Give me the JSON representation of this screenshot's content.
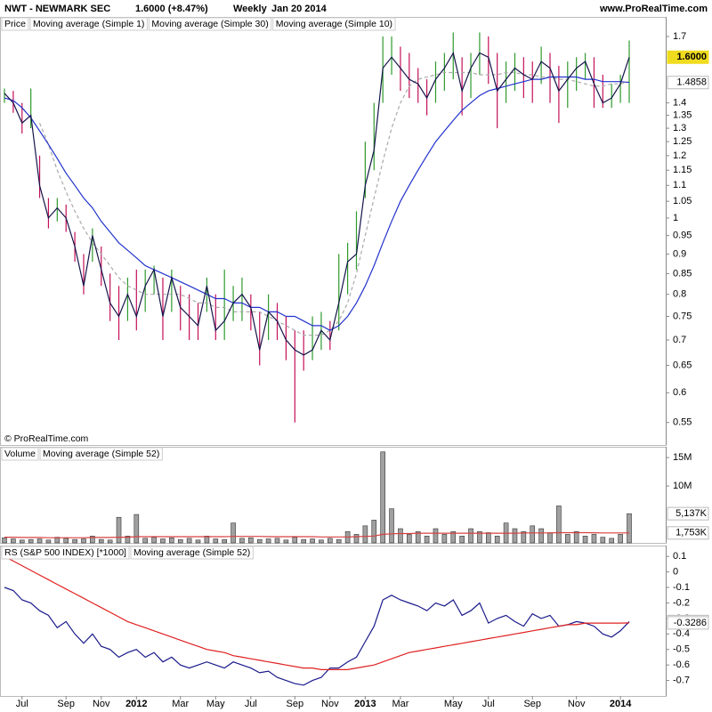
{
  "header": {
    "symbol": "NWT - NEWMARK SEC",
    "quote": "1.6000 (+8.47%)",
    "period": "Weekly",
    "date": "Jan 20 2014",
    "site": "www.ProRealTime.com"
  },
  "copyright": "© ProRealTime.com",
  "chart_data": [
    {
      "type": "price",
      "legend_label": "Price",
      "log": true,
      "ylim": [
        0.515,
        1.8
      ],
      "yticks": [
        1.7,
        1.4,
        1.35,
        1.3,
        1.25,
        1.2,
        1.15,
        1.1,
        1.05,
        1,
        0.95,
        0.9,
        0.85,
        0.8,
        0.75,
        0.7,
        0.65,
        0.6,
        0.55
      ],
      "up_color": "#2e9a2e",
      "down_color": "#c4105a",
      "high": [
        1.46,
        1.45,
        1.4,
        1.46,
        1.2,
        1.06,
        1.06,
        1.04,
        0.96,
        0.9,
        0.97,
        0.92,
        0.85,
        0.82,
        0.84,
        0.86,
        0.86,
        0.87,
        0.84,
        0.86,
        0.82,
        0.8,
        0.78,
        0.84,
        0.8,
        0.86,
        0.82,
        0.84,
        0.8,
        0.76,
        0.8,
        0.78,
        0.75,
        0.72,
        0.72,
        0.75,
        0.76,
        0.74,
        0.9,
        0.93,
        1.02,
        1.25,
        1.4,
        1.7,
        1.7,
        1.65,
        1.62,
        1.55,
        1.5,
        1.58,
        1.62,
        1.72,
        1.6,
        1.62,
        1.72,
        1.7,
        1.62,
        1.58,
        1.62,
        1.6,
        1.58,
        1.65,
        1.62,
        1.56,
        1.58,
        1.6,
        1.62,
        1.6,
        1.52,
        1.48,
        1.52,
        1.68
      ],
      "low": [
        1.4,
        1.36,
        1.28,
        1.3,
        1.06,
        0.97,
        0.99,
        0.96,
        0.88,
        0.8,
        0.88,
        0.82,
        0.74,
        0.7,
        0.74,
        0.72,
        0.76,
        0.8,
        0.7,
        0.76,
        0.72,
        0.7,
        0.7,
        0.76,
        0.7,
        0.7,
        0.74,
        0.74,
        0.72,
        0.65,
        0.7,
        0.7,
        0.66,
        0.55,
        0.64,
        0.66,
        0.68,
        0.68,
        0.72,
        0.8,
        0.86,
        1.06,
        1.15,
        1.4,
        1.52,
        1.45,
        1.42,
        1.4,
        1.35,
        1.4,
        1.45,
        1.5,
        1.35,
        1.42,
        1.52,
        1.48,
        1.3,
        1.4,
        1.45,
        1.42,
        1.4,
        1.48,
        1.4,
        1.32,
        1.38,
        1.45,
        1.5,
        1.38,
        1.38,
        1.38,
        1.4,
        1.4
      ],
      "series": [
        {
          "name": "Moving average (Simple 1)",
          "color": "#14144a",
          "last_label": "1.6000",
          "label_fill": "#f0dc1e",
          "values": [
            1.44,
            1.4,
            1.32,
            1.35,
            1.1,
            1.0,
            1.03,
            1.0,
            0.92,
            0.82,
            0.95,
            0.86,
            0.78,
            0.75,
            0.8,
            0.75,
            0.82,
            0.86,
            0.75,
            0.84,
            0.77,
            0.75,
            0.73,
            0.82,
            0.72,
            0.74,
            0.78,
            0.8,
            0.77,
            0.68,
            0.76,
            0.74,
            0.7,
            0.68,
            0.67,
            0.68,
            0.72,
            0.7,
            0.78,
            0.88,
            0.9,
            1.1,
            1.22,
            1.55,
            1.6,
            1.55,
            1.5,
            1.48,
            1.42,
            1.5,
            1.55,
            1.62,
            1.45,
            1.55,
            1.62,
            1.6,
            1.45,
            1.5,
            1.55,
            1.52,
            1.5,
            1.58,
            1.55,
            1.45,
            1.5,
            1.55,
            1.58,
            1.48,
            1.4,
            1.42,
            1.48,
            1.6
          ]
        },
        {
          "name": "Moving average (Simple 30)",
          "color": "#2233cc",
          "last_label": "1.4858",
          "values": [
            1.42,
            1.41,
            1.38,
            1.34,
            1.29,
            1.24,
            1.19,
            1.14,
            1.1,
            1.06,
            1.03,
            0.99,
            0.96,
            0.93,
            0.91,
            0.89,
            0.87,
            0.86,
            0.85,
            0.84,
            0.83,
            0.82,
            0.81,
            0.8,
            0.79,
            0.79,
            0.78,
            0.78,
            0.77,
            0.77,
            0.76,
            0.76,
            0.75,
            0.75,
            0.74,
            0.73,
            0.73,
            0.72,
            0.73,
            0.75,
            0.78,
            0.82,
            0.87,
            0.93,
            0.99,
            1.05,
            1.1,
            1.15,
            1.2,
            1.25,
            1.29,
            1.33,
            1.37,
            1.4,
            1.43,
            1.45,
            1.46,
            1.47,
            1.48,
            1.49,
            1.5,
            1.5,
            1.51,
            1.51,
            1.51,
            1.51,
            1.5,
            1.5,
            1.49,
            1.49,
            1.49,
            1.4858
          ]
        },
        {
          "name": "Moving average (Simple 10)",
          "color": "#aaaaaa",
          "dash": true,
          "values": [
            null,
            null,
            null,
            null,
            1.32,
            1.24,
            1.15,
            1.08,
            1.02,
            0.97,
            0.93,
            0.9,
            0.87,
            0.84,
            0.82,
            0.81,
            0.8,
            0.8,
            0.8,
            0.8,
            0.8,
            0.79,
            0.78,
            0.78,
            0.77,
            0.77,
            0.76,
            0.76,
            0.76,
            0.76,
            0.75,
            0.74,
            0.73,
            0.72,
            0.71,
            0.71,
            0.71,
            0.72,
            0.74,
            0.78,
            0.85,
            0.95,
            1.06,
            1.18,
            1.3,
            1.4,
            1.47,
            1.5,
            1.51,
            1.52,
            1.53,
            1.53,
            1.53,
            1.53,
            1.52,
            1.52,
            1.52,
            1.53,
            1.53,
            1.52,
            1.52,
            1.51,
            1.51,
            1.5,
            1.5,
            1.49,
            1.48,
            1.47,
            1.47,
            1.48,
            1.48,
            1.49
          ]
        }
      ]
    },
    {
      "type": "bar",
      "legend_label": "Volume",
      "color": "#a0a0a0",
      "last_label": "5,137K",
      "ylim": [
        0,
        16900000
      ],
      "yticks": [
        {
          "value": 15000000,
          "label": "15M"
        },
        {
          "value": 10000000,
          "label": "10M"
        }
      ],
      "values": [
        900000,
        700000,
        500000,
        600000,
        700000,
        500000,
        1000000,
        800000,
        600000,
        700000,
        1200000,
        600000,
        500000,
        4500000,
        1200000,
        5000000,
        800000,
        1000000,
        700000,
        900000,
        600000,
        800000,
        500000,
        1200000,
        700000,
        600000,
        3500000,
        800000,
        900000,
        600000,
        700000,
        800000,
        500000,
        1000000,
        600000,
        700000,
        500000,
        800000,
        600000,
        2000000,
        1500000,
        3000000,
        4000000,
        16000000,
        6000000,
        2500000,
        1500000,
        2000000,
        1200000,
        2500000,
        1500000,
        2000000,
        1200000,
        2500000,
        2000000,
        1800000,
        1200000,
        3500000,
        2500000,
        2000000,
        3000000,
        2500000,
        1800000,
        6500000,
        1500000,
        2000000,
        1200000,
        1500000,
        1000000,
        800000,
        1500000,
        5137000
      ],
      "series": [
        {
          "name": "Moving average (Simple 52)",
          "color": "#d84040",
          "last_label": "1,753K",
          "values": [
            1000000,
            1000000,
            950000,
            950000,
            950000,
            900000,
            900000,
            900000,
            900000,
            900000,
            950000,
            950000,
            950000,
            1000000,
            1000000,
            1100000,
            1100000,
            1100000,
            1100000,
            1100000,
            1100000,
            1100000,
            1100000,
            1100000,
            1100000,
            1100000,
            1150000,
            1150000,
            1150000,
            1150000,
            1100000,
            1100000,
            1100000,
            1100000,
            1100000,
            1100000,
            1050000,
            1050000,
            1050000,
            1050000,
            1100000,
            1150000,
            1200000,
            1500000,
            1600000,
            1650000,
            1650000,
            1700000,
            1700000,
            1700000,
            1700000,
            1700000,
            1700000,
            1700000,
            1700000,
            1700000,
            1700000,
            1700000,
            1700000,
            1750000,
            1750000,
            1750000,
            1750000,
            1800000,
            1800000,
            1800000,
            1800000,
            1780000,
            1760000,
            1750000,
            1750000,
            1753000
          ]
        }
      ]
    },
    {
      "type": "line",
      "ylim": [
        -0.8,
        0.17
      ],
      "yticks": [
        0.1,
        0,
        -0.1,
        -0.2,
        -0.3,
        -0.4,
        -0.5,
        -0.6,
        -0.7
      ],
      "categories": [
        null,
        null,
        "Jul",
        null,
        null,
        null,
        null,
        "Sep",
        null,
        null,
        null,
        "Nov",
        null,
        null,
        null,
        "2012",
        null,
        null,
        null,
        null,
        "Mar",
        null,
        null,
        null,
        "May",
        null,
        null,
        null,
        "Jul",
        null,
        null,
        null,
        null,
        "Sep",
        null,
        null,
        null,
        "Nov",
        null,
        null,
        null,
        "2013",
        null,
        null,
        null,
        "Mar",
        null,
        null,
        null,
        null,
        null,
        "May",
        null,
        null,
        null,
        "Jul",
        null,
        null,
        null,
        null,
        "Sep",
        null,
        null,
        null,
        null,
        "Nov",
        null,
        null,
        null,
        null,
        "2014",
        null
      ],
      "series": [
        {
          "name": "RS (S&P 500 INDEX) [*1000]",
          "color": "#1a1a8c",
          "last_label": "-0.3200",
          "values": [
            -0.1,
            -0.12,
            -0.18,
            -0.2,
            -0.25,
            -0.28,
            -0.36,
            -0.32,
            -0.4,
            -0.46,
            -0.4,
            -0.48,
            -0.5,
            -0.55,
            -0.52,
            -0.5,
            -0.55,
            -0.52,
            -0.58,
            -0.55,
            -0.6,
            -0.62,
            -0.6,
            -0.58,
            -0.6,
            -0.62,
            -0.58,
            -0.6,
            -0.62,
            -0.65,
            -0.64,
            -0.68,
            -0.7,
            -0.72,
            -0.73,
            -0.7,
            -0.68,
            -0.62,
            -0.62,
            -0.58,
            -0.55,
            -0.45,
            -0.35,
            -0.18,
            -0.15,
            -0.18,
            -0.2,
            -0.22,
            -0.25,
            -0.2,
            -0.22,
            -0.18,
            -0.28,
            -0.25,
            -0.2,
            -0.33,
            -0.3,
            -0.28,
            -0.32,
            -0.35,
            -0.27,
            -0.3,
            -0.28,
            -0.35,
            -0.34,
            -0.32,
            -0.33,
            -0.35,
            -0.4,
            -0.42,
            -0.38,
            -0.32
          ]
        },
        {
          "name": "Moving average (Simple 52)",
          "color": "#e02020",
          "last_label": "-0.3286",
          "values": [
            0.1,
            0.07,
            0.04,
            0.01,
            -0.02,
            -0.05,
            -0.08,
            -0.11,
            -0.14,
            -0.17,
            -0.2,
            -0.23,
            -0.26,
            -0.29,
            -0.32,
            -0.34,
            -0.36,
            -0.38,
            -0.4,
            -0.42,
            -0.44,
            -0.46,
            -0.48,
            -0.5,
            -0.51,
            -0.52,
            -0.54,
            -0.55,
            -0.56,
            -0.57,
            -0.58,
            -0.59,
            -0.6,
            -0.61,
            -0.62,
            -0.62,
            -0.63,
            -0.63,
            -0.63,
            -0.63,
            -0.62,
            -0.61,
            -0.6,
            -0.58,
            -0.56,
            -0.54,
            -0.52,
            -0.51,
            -0.5,
            -0.49,
            -0.48,
            -0.47,
            -0.46,
            -0.45,
            -0.44,
            -0.43,
            -0.42,
            -0.41,
            -0.4,
            -0.39,
            -0.38,
            -0.37,
            -0.36,
            -0.35,
            -0.34,
            -0.34,
            -0.33,
            -0.33,
            -0.33,
            -0.33,
            -0.33,
            -0.3286
          ]
        }
      ]
    }
  ]
}
